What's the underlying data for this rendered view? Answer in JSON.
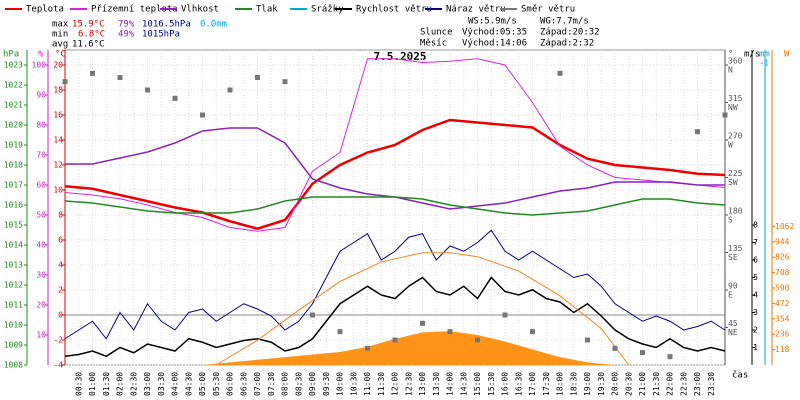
{
  "chart_data": {
    "type": "line",
    "title": "7.5.2025",
    "stats": {
      "max": {
        "label": "max",
        "temp": "15.9°C",
        "humidity": "79%",
        "pressure": "1016.5hPa",
        "precip": "0.0mm"
      },
      "min": {
        "label": "min",
        "temp": "6.8°C",
        "humidity": "49%",
        "pressure": "1015hPa"
      },
      "avg": {
        "label": "avg",
        "temp": "11.6°C"
      }
    },
    "wind": {
      "ws": "WS:5.9m/s",
      "wg": "WG:7.7m/s"
    },
    "sun": {
      "label": "Slunce",
      "rise": "Východ:05:35",
      "set": "Západ:20:32"
    },
    "moon": {
      "label": "Měsíc",
      "rise": "Východ:14:06",
      "set": "Západ:2:32"
    },
    "xlabel": "čas",
    "xlim": [
      0,
      24
    ],
    "xticks": [
      {
        "value": 0.5,
        "label": "00:30"
      },
      {
        "value": 1,
        "label": "01:00"
      },
      {
        "value": 1.5,
        "label": "01:30"
      },
      {
        "value": 2,
        "label": "02:00"
      },
      {
        "value": 2.5,
        "label": "02:30"
      },
      {
        "value": 3,
        "label": "03:00"
      },
      {
        "value": 3.5,
        "label": "03:30"
      },
      {
        "value": 4,
        "label": "04:00"
      },
      {
        "value": 4.5,
        "label": "04:30"
      },
      {
        "value": 5,
        "label": "05:00"
      },
      {
        "value": 5.5,
        "label": "05:30"
      },
      {
        "value": 6,
        "label": "06:00"
      },
      {
        "value": 6.5,
        "label": "06:30"
      },
      {
        "value": 7,
        "label": "07:00"
      },
      {
        "value": 7.5,
        "label": "07:30"
      },
      {
        "value": 8,
        "label": "08:00"
      },
      {
        "value": 8.5,
        "label": "08:30"
      },
      {
        "value": 9,
        "label": "09:00"
      },
      {
        "value": 9.5,
        "label": "09:30"
      },
      {
        "value": 10,
        "label": "10:00"
      },
      {
        "value": 10.5,
        "label": "10:30"
      },
      {
        "value": 11,
        "label": "11:00"
      },
      {
        "value": 11.5,
        "label": "11:30"
      },
      {
        "value": 12,
        "label": "12:00"
      },
      {
        "value": 12.5,
        "label": "12:30"
      },
      {
        "value": 13,
        "label": "13:00"
      },
      {
        "value": 13.5,
        "label": "13:30"
      },
      {
        "value": 14,
        "label": "14:00"
      },
      {
        "value": 14.5,
        "label": "14:30"
      },
      {
        "value": 15,
        "label": "15:00"
      },
      {
        "value": 15.5,
        "label": "15:30"
      },
      {
        "value": 16,
        "label": "16:00"
      },
      {
        "value": 16.5,
        "label": "16:30"
      },
      {
        "value": 17,
        "label": "17:00"
      },
      {
        "value": 17.5,
        "label": "17:30"
      },
      {
        "value": 18,
        "label": "18:00"
      },
      {
        "value": 18.5,
        "label": "18:30"
      },
      {
        "value": 19,
        "label": "19:00"
      },
      {
        "value": 19.5,
        "label": "19:30"
      },
      {
        "value": 20,
        "label": "20:00"
      },
      {
        "value": 20.5,
        "label": "20:30"
      },
      {
        "value": 21,
        "label": "21:00"
      },
      {
        "value": 21.5,
        "label": "21:30"
      },
      {
        "value": 22,
        "label": "22:00"
      },
      {
        "value": 22.5,
        "label": "22:30"
      },
      {
        "value": 23,
        "label": "23:00"
      },
      {
        "value": 23.5,
        "label": "23:30"
      }
    ],
    "axes": {
      "pressure": {
        "unit": "hPa",
        "color": "#228822",
        "lim": [
          1008,
          1023.75
        ],
        "ticks": [
          1008,
          1009,
          1010,
          1011,
          1012,
          1013,
          1014,
          1015,
          1016,
          1017,
          1018,
          1019,
          1020,
          1021,
          1022,
          1023
        ]
      },
      "humidity": {
        "unit": "%",
        "color": "#cc22cc",
        "lim": [
          0,
          105
        ],
        "ticks": [
          10,
          20,
          30,
          40,
          50,
          60,
          70,
          80,
          90,
          100
        ]
      },
      "temp": {
        "unit": "°C",
        "color": "#dd0000",
        "lim": [
          -4,
          21.2
        ],
        "ticks": [
          -4,
          -2,
          0,
          2,
          4,
          6,
          8,
          10,
          12,
          14,
          16,
          18,
          20
        ]
      },
      "direction": {
        "unit": "°",
        "color": "#555555",
        "lim": [
          0,
          378
        ],
        "ticks": [
          45,
          90,
          135,
          180,
          225,
          270,
          315,
          360
        ],
        "compass": [
          "NE",
          "E",
          "SE",
          "S",
          "SW",
          "W",
          "NW",
          "N"
        ]
      },
      "wind": {
        "unit": "m/s",
        "color": "#000000",
        "lim": [
          0,
          18
        ],
        "ticks": [
          1,
          2,
          3,
          4,
          5,
          6,
          7,
          8
        ]
      },
      "precip": {
        "unit": "mm",
        "color": "#00aacc",
        "ticks": [
          -1
        ]
      },
      "radiation": {
        "unit": "W",
        "color": "#ee7700",
        "lim": [
          0,
          2414
        ],
        "ticks": [
          118,
          236,
          354,
          472,
          590,
          708,
          826,
          944,
          1062
        ]
      }
    },
    "series": [
      {
        "name": "Teplota",
        "color": "#ee0000",
        "axis": "temp",
        "type": "line",
        "width": 2.5,
        "x": [
          0,
          1,
          2,
          3,
          4,
          5,
          6,
          7,
          8,
          9,
          10,
          11,
          12,
          13,
          14,
          15,
          16,
          17,
          18,
          19,
          20,
          21,
          22,
          23,
          24
        ],
        "values": [
          10.3,
          10.1,
          9.6,
          9.1,
          8.6,
          8.2,
          7.5,
          6.9,
          7.6,
          10.5,
          12.0,
          13.0,
          13.6,
          14.8,
          15.6,
          15.4,
          15.2,
          15.0,
          13.6,
          12.5,
          12.0,
          11.8,
          11.6,
          11.3,
          11.2
        ]
      },
      {
        "name": "Přízemní teplota",
        "color": "#dd22dd",
        "axis": "temp",
        "type": "line",
        "width": 1,
        "x": [
          0,
          1,
          2,
          3,
          4,
          5,
          6,
          7,
          8,
          9,
          10,
          11,
          12,
          13,
          14,
          15,
          16,
          17,
          18,
          19,
          20,
          21,
          22,
          23,
          24
        ],
        "values": [
          9.8,
          9.6,
          9.3,
          8.8,
          8.2,
          7.8,
          7.0,
          6.7,
          7.0,
          11.5,
          13.0,
          20.5,
          20.5,
          20.2,
          20.3,
          20.5,
          20.0,
          17.0,
          13.5,
          12.0,
          11.0,
          10.8,
          10.6,
          10.4,
          10.2
        ]
      },
      {
        "name": "Vlhkost",
        "color": "#8822bb",
        "axis": "humidity",
        "type": "line",
        "width": 1.5,
        "x": [
          0,
          1,
          2,
          3,
          4,
          5,
          6,
          7,
          8,
          9,
          10,
          11,
          12,
          13,
          14,
          15,
          16,
          17,
          18,
          19,
          20,
          21,
          22,
          23,
          24
        ],
        "values": [
          67,
          67,
          69,
          71,
          74,
          78,
          79,
          79,
          74,
          62,
          59,
          57,
          56,
          54,
          52,
          53,
          54,
          56,
          58,
          59,
          61,
          61,
          61,
          60,
          60
        ]
      },
      {
        "name": "Tlak",
        "color": "#228822",
        "axis": "pressure",
        "type": "line",
        "width": 1.5,
        "x": [
          0,
          1,
          2,
          3,
          4,
          5,
          6,
          7,
          8,
          9,
          10,
          11,
          12,
          13,
          14,
          15,
          16,
          17,
          18,
          19,
          20,
          21,
          22,
          23,
          24
        ],
        "values": [
          1016.2,
          1016.1,
          1015.9,
          1015.7,
          1015.6,
          1015.6,
          1015.6,
          1015.8,
          1016.2,
          1016.4,
          1016.4,
          1016.4,
          1016.4,
          1016.3,
          1016.0,
          1015.8,
          1015.6,
          1015.5,
          1015.6,
          1015.7,
          1016.0,
          1016.3,
          1016.3,
          1016.1,
          1016.0
        ]
      },
      {
        "name": "Srážky",
        "color": "#00aacc",
        "axis": "precip",
        "type": "bar",
        "x": [],
        "values": []
      },
      {
        "name": "Rychlost větru",
        "color": "#000000",
        "axis": "wind",
        "type": "line",
        "width": 1.5,
        "x": [
          0,
          0.5,
          1,
          1.5,
          2,
          2.5,
          3,
          3.5,
          4,
          4.5,
          5,
          5.5,
          6,
          6.5,
          7,
          7.5,
          8,
          8.5,
          9,
          9.5,
          10,
          10.5,
          11,
          11.5,
          12,
          12.5,
          13,
          13.5,
          14,
          14.5,
          15,
          15.5,
          16,
          16.5,
          17,
          17.5,
          18,
          18.5,
          19,
          19.5,
          20,
          20.5,
          21,
          21.5,
          22,
          22.5,
          23,
          23.5,
          24
        ],
        "values": [
          0.5,
          0.6,
          0.8,
          0.5,
          1.0,
          0.7,
          1.2,
          1.0,
          0.8,
          1.5,
          1.3,
          1.0,
          1.2,
          1.4,
          1.5,
          1.3,
          0.8,
          1.0,
          1.5,
          2.5,
          3.5,
          4.0,
          4.5,
          4.0,
          3.8,
          4.5,
          5.0,
          4.2,
          4.0,
          4.5,
          3.8,
          5.0,
          4.2,
          4.0,
          4.3,
          3.8,
          3.6,
          3.0,
          3.5,
          2.8,
          2.0,
          1.5,
          1.2,
          1.0,
          1.5,
          1.0,
          0.8,
          1.0,
          0.8
        ]
      },
      {
        "name": "Náraz větru",
        "color": "#000088",
        "axis": "wind",
        "type": "line",
        "width": 1,
        "x": [
          0,
          0.5,
          1,
          1.5,
          2,
          2.5,
          3,
          3.5,
          4,
          4.5,
          5,
          5.5,
          6,
          6.5,
          7,
          7.5,
          8,
          8.5,
          9,
          9.5,
          10,
          10.5,
          11,
          11.5,
          12,
          12.5,
          13,
          13.5,
          14,
          14.5,
          15,
          15.5,
          16,
          16.5,
          17,
          17.5,
          18,
          18.5,
          19,
          19.5,
          20,
          20.5,
          21,
          21.5,
          22,
          22.5,
          23,
          23.5,
          24
        ],
        "values": [
          1.5,
          2,
          2.5,
          1.5,
          3,
          2,
          3.5,
          2.5,
          2,
          3,
          3.2,
          2.5,
          3,
          3.5,
          3.2,
          2.8,
          2,
          2.5,
          3.5,
          5,
          6.5,
          7,
          7.5,
          6,
          6.5,
          7.3,
          7.5,
          6,
          6.8,
          6.5,
          7,
          7.7,
          6.5,
          6,
          6.5,
          6,
          5.5,
          5,
          5.2,
          4.5,
          3.5,
          3,
          2.5,
          2.8,
          2.5,
          2,
          2.2,
          2.5,
          2
        ]
      },
      {
        "name": "Směr větru",
        "color": "#777777",
        "axis": "direction",
        "type": "scatter",
        "x": [
          0,
          1,
          2,
          3,
          4,
          5,
          6,
          7,
          8,
          9,
          10,
          11,
          12,
          13,
          14,
          15,
          16,
          17,
          18,
          19,
          20,
          21,
          22,
          23,
          24
        ],
        "values": [
          340,
          350,
          345,
          330,
          320,
          300,
          330,
          345,
          340,
          60,
          40,
          20,
          30,
          50,
          40,
          30,
          60,
          40,
          350,
          30,
          20,
          15,
          10,
          280,
          300
        ]
      },
      {
        "color": "#ff8800",
        "axis": "radiation",
        "type": "area",
        "x": [
          0,
          1,
          2,
          3,
          4,
          5,
          6,
          7,
          8,
          9,
          10,
          11,
          12,
          13,
          14,
          15,
          16,
          17,
          18,
          19,
          20,
          21,
          22,
          23,
          24
        ],
        "values": [
          0,
          0,
          0,
          0,
          0,
          0,
          20,
          40,
          60,
          80,
          100,
          140,
          200,
          250,
          260,
          230,
          180,
          120,
          60,
          20,
          0,
          0,
          0,
          0,
          0
        ]
      },
      {
        "color": "#ee8822",
        "axis": "radiation",
        "type": "line",
        "width": 1,
        "x": [
          5.5,
          7,
          8.5,
          10,
          11.5,
          13,
          14,
          15,
          16.5,
          18,
          19.5,
          20.5
        ],
        "values": [
          0,
          190,
          420,
          640,
          790,
          860,
          860,
          830,
          720,
          530,
          280,
          0
        ]
      }
    ]
  }
}
